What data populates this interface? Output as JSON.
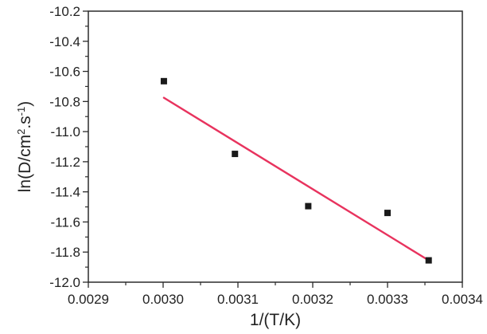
{
  "chart_data": {
    "type": "scatter",
    "title": "",
    "xlabel": "1/(T/K)",
    "ylabel": {
      "base": "ln(D/cm",
      "sup1": "2",
      "mid": ".s",
      "sup2": "-1",
      "end": ")"
    },
    "xlim": [
      0.0029,
      0.0034
    ],
    "ylim": [
      -12.0,
      -10.2
    ],
    "xticks": [
      0.0029,
      0.003,
      0.0031,
      0.0032,
      0.0033,
      0.0034
    ],
    "xtick_labels": [
      "0.0029",
      "0.0030",
      "0.0031",
      "0.0032",
      "0.0033",
      "0.0034"
    ],
    "yticks": [
      -10.2,
      -10.4,
      -10.6,
      -10.8,
      -11.0,
      -11.2,
      -11.4,
      -11.6,
      -11.8,
      -12.0
    ],
    "ytick_labels": [
      "-10.2",
      "-10.4",
      "-10.6",
      "-10.8",
      "-11.0",
      "-11.2",
      "-11.4",
      "-11.6",
      "-11.8",
      "-12.0"
    ],
    "grid": false,
    "legend": "none",
    "series": [
      {
        "type": "scatter",
        "color": "#1a1a1a",
        "points": [
          {
            "x": 0.003001,
            "y": -10.665
          },
          {
            "x": 0.003096,
            "y": -11.148
          },
          {
            "x": 0.003194,
            "y": -11.495
          },
          {
            "x": 0.0033,
            "y": -11.54
          },
          {
            "x": 0.003355,
            "y": -11.855
          }
        ]
      },
      {
        "type": "line",
        "color": "#e8335e",
        "points": [
          {
            "x": 0.003001,
            "y": -10.775
          },
          {
            "x": 0.003355,
            "y": -11.855
          }
        ]
      }
    ]
  }
}
